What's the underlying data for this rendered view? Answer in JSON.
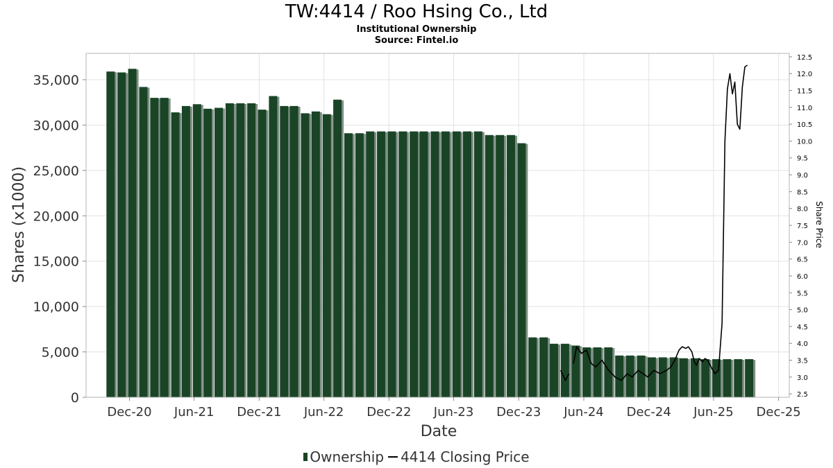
{
  "header": {
    "title": "TW:4414 / Roo Hsing Co., Ltd",
    "subtitle": "Institutional Ownership",
    "source": "Source: Fintel.io"
  },
  "legend": {
    "ownership_label": "Ownership",
    "price_label": "4414 Closing Price"
  },
  "colors": {
    "bar": "#1a4426",
    "bar_shadow": "#7f8f85",
    "price_line": "#000000",
    "grid": "#e3e3e3"
  },
  "chart_data": {
    "type": "bar",
    "title": "TW:4414 / Roo Hsing Co., Ltd",
    "subtitle": "Institutional Ownership",
    "xlabel": "Date",
    "ylabel": "Shares (x1000)",
    "y2label": "Share Price",
    "grid": true,
    "legend_position": "bottom",
    "x_range": [
      "2020-08-01",
      "2025-12-31"
    ],
    "ylim": [
      0,
      37900
    ],
    "y2lim": [
      2.4,
      12.6
    ],
    "x_ticks": [
      {
        "date": "2020-12-01",
        "label": "Dec-20"
      },
      {
        "date": "2021-06-01",
        "label": "Jun-21"
      },
      {
        "date": "2021-12-01",
        "label": "Dec-21"
      },
      {
        "date": "2022-06-01",
        "label": "Jun-22"
      },
      {
        "date": "2022-12-01",
        "label": "Dec-22"
      },
      {
        "date": "2023-06-01",
        "label": "Jun-23"
      },
      {
        "date": "2023-12-01",
        "label": "Dec-23"
      },
      {
        "date": "2024-06-01",
        "label": "Jun-24"
      },
      {
        "date": "2024-12-01",
        "label": "Dec-24"
      },
      {
        "date": "2025-06-01",
        "label": "Jun-25"
      },
      {
        "date": "2025-12-01",
        "label": "Dec-25"
      }
    ],
    "y_ticks": [
      {
        "value": 0,
        "label": "0"
      },
      {
        "value": 5000,
        "label": "5,000"
      },
      {
        "value": 10000,
        "label": "10,000"
      },
      {
        "value": 15000,
        "label": "15,000"
      },
      {
        "value": 20000,
        "label": "20,000"
      },
      {
        "value": 25000,
        "label": "25,000"
      },
      {
        "value": 30000,
        "label": "30,000"
      },
      {
        "value": 35000,
        "label": "35,000"
      }
    ],
    "y2_ticks": [
      "2.5",
      "3.0",
      "3.5",
      "4.0",
      "4.5",
      "5.0",
      "5.5",
      "6.0",
      "6.5",
      "7.0",
      "7.5",
      "8.0",
      "8.5",
      "9.0",
      "9.5",
      "10.0",
      "10.5",
      "11.0",
      "11.5",
      "12.0",
      "12.5"
    ],
    "series": [
      {
        "name": "Ownership",
        "type": "bar",
        "dates": [
          "2020-10-10",
          "2020-11-10",
          "2020-12-10",
          "2021-01-10",
          "2021-02-10",
          "2021-03-10",
          "2021-04-10",
          "2021-05-10",
          "2021-06-10",
          "2021-07-10",
          "2021-08-10",
          "2021-09-10",
          "2021-10-10",
          "2021-11-10",
          "2021-12-10",
          "2022-01-10",
          "2022-02-10",
          "2022-03-10",
          "2022-04-10",
          "2022-05-10",
          "2022-06-10",
          "2022-07-10",
          "2022-08-10",
          "2022-09-10",
          "2022-10-10",
          "2022-11-10",
          "2022-12-10",
          "2023-01-10",
          "2023-02-10",
          "2023-03-10",
          "2023-04-10",
          "2023-05-10",
          "2023-06-10",
          "2023-07-10",
          "2023-08-10",
          "2023-09-10",
          "2023-10-10",
          "2023-11-10",
          "2023-12-10",
          "2024-01-10",
          "2024-02-10",
          "2024-03-10",
          "2024-04-10",
          "2024-05-10",
          "2024-06-10",
          "2024-07-10",
          "2024-08-10",
          "2024-09-10",
          "2024-10-10",
          "2024-11-10",
          "2024-12-10",
          "2025-01-10",
          "2025-02-10",
          "2025-03-10",
          "2025-04-10",
          "2025-05-10",
          "2025-06-10",
          "2025-07-10",
          "2025-08-10",
          "2025-09-10"
        ],
        "values": [
          35900,
          35800,
          36200,
          34200,
          33000,
          33000,
          31400,
          32100,
          32300,
          31800,
          31900,
          32400,
          32400,
          32400,
          31700,
          33200,
          32100,
          32100,
          31300,
          31500,
          31200,
          32800,
          29100,
          29100,
          29300,
          29300,
          29300,
          29300,
          29300,
          29300,
          29300,
          29300,
          29300,
          29300,
          29300,
          28900,
          28900,
          28900,
          28000,
          6600,
          6600,
          5900,
          5900,
          5700,
          5500,
          5500,
          5500,
          4600,
          4600,
          4600,
          4400,
          4400,
          4400,
          4300,
          4300,
          4200,
          4200,
          4200,
          4200,
          4200
        ]
      },
      {
        "name": "4414 Closing Price",
        "type": "line",
        "segments": [
          {
            "dates": [
              "2024-03-28",
              "2024-04-10",
              "2024-04-20"
            ],
            "values": [
              3.2,
              2.9,
              3.1
            ]
          },
          {
            "dates": [
              "2024-05-03",
              "2024-05-12",
              "2024-05-25",
              "2024-06-08",
              "2024-06-22",
              "2024-07-05",
              "2024-07-22",
              "2024-08-10",
              "2024-08-28",
              "2024-09-15",
              "2024-10-01",
              "2024-10-15",
              "2024-11-01",
              "2024-11-15",
              "2024-11-28",
              "2024-12-15",
              "2025-01-01",
              "2025-01-20",
              "2025-02-01",
              "2025-02-12",
              "2025-02-24",
              "2025-03-05",
              "2025-03-15",
              "2025-03-22",
              "2025-04-01",
              "2025-04-08",
              "2025-04-14",
              "2025-04-22",
              "2025-05-01",
              "2025-05-08",
              "2025-05-15",
              "2025-05-25",
              "2025-06-05",
              "2025-06-15",
              "2025-06-25",
              "2025-07-03",
              "2025-07-10",
              "2025-07-17",
              "2025-07-24",
              "2025-07-31",
              "2025-08-07",
              "2025-08-14",
              "2025-08-21",
              "2025-08-28",
              "2025-09-04"
            ],
            "values": [
              3.4,
              3.9,
              3.7,
              3.8,
              3.4,
              3.3,
              3.5,
              3.2,
              3.0,
              2.9,
              3.1,
              3.0,
              3.2,
              3.1,
              3.0,
              3.2,
              3.1,
              3.2,
              3.3,
              3.5,
              3.8,
              3.9,
              3.85,
              3.9,
              3.75,
              3.45,
              3.35,
              3.55,
              3.45,
              3.55,
              3.5,
              3.3,
              3.1,
              3.2,
              4.6,
              10.0,
              11.55,
              12.0,
              11.4,
              11.75,
              10.5,
              10.35,
              11.6,
              12.2,
              12.25
            ]
          }
        ]
      }
    ]
  },
  "axis_titles": {
    "x": "Date",
    "y": "Shares (x1000)",
    "y2": "Share Price"
  }
}
